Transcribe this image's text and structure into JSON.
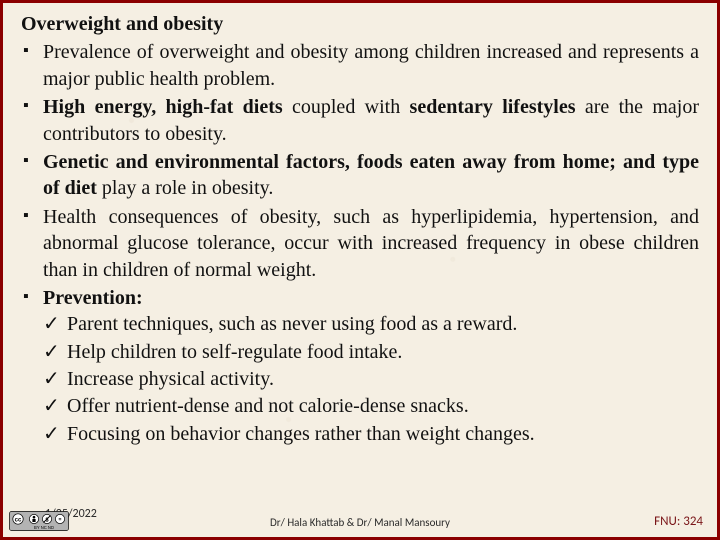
{
  "colors": {
    "background": "#f5efe3",
    "border": "#8b0000",
    "text": "#111111",
    "footer_text": "#2a2a2a",
    "page_number": "#7a1518"
  },
  "typography": {
    "body_family": "Times New Roman",
    "body_fontsize_pt": 15,
    "footer_family": "Calibri",
    "footer_fontsize_pt": 9,
    "line_height": 1.32,
    "body_align": "justify"
  },
  "title": "Overweight and obesity",
  "bullets": [
    {
      "runs": [
        {
          "t": "Prevalence of overweight and obesity among children increased and represents a major public health problem.",
          "b": false
        }
      ]
    },
    {
      "runs": [
        {
          "t": "High energy, high-fat diets",
          "b": true
        },
        {
          "t": " coupled with ",
          "b": false
        },
        {
          "t": "sedentary lifestyles",
          "b": true
        },
        {
          "t": " are the major contributors to obesity.",
          "b": false
        }
      ]
    },
    {
      "runs": [
        {
          "t": "Genetic and environmental factors, foods eaten away from home; and  type of diet",
          "b": true
        },
        {
          "t": " play a role in obesity.",
          "b": false
        }
      ]
    },
    {
      "runs": [
        {
          "t": "Health consequences of obesity, such as hyperlipidemia, hypertension, and abnormal glucose tolerance, occur with increased frequency in obese children than in children of normal weight.",
          "b": false
        }
      ]
    },
    {
      "runs": [
        {
          "t": "Prevention:",
          "b": true
        }
      ],
      "checks": [
        "Parent techniques, such as never using food as a reward.",
        "Help children to self-regulate food intake.",
        "Increase physical activity.",
        "Offer nutrient-dense and not calorie-dense snacks.",
        "Focusing on behavior changes rather than weight changes."
      ]
    }
  ],
  "footer": {
    "date": "1/25/2022",
    "authors": "Dr/ Hala Khattab & Dr/ Manal Mansoury",
    "page_label": "FNU: 324"
  },
  "cc_badge": {
    "name": "cc-by-nc-nd-icon",
    "bg": "#b3b3b3",
    "border": "#000000",
    "circle_fill": "#ffffff",
    "text": "BY  NC  ND"
  }
}
